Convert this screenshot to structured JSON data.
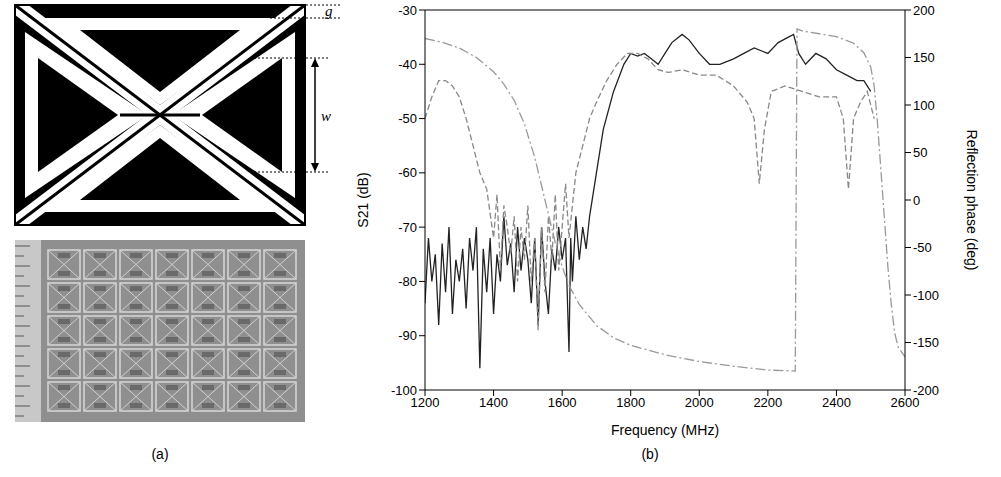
{
  "diagram": {
    "label": "(a)",
    "dimensions": [
      "g",
      "w"
    ]
  },
  "chart_data": {
    "type": "line",
    "label": "(b)",
    "x_label": "Frequency (MHz)",
    "y_label": "S21 (dB)",
    "y2_label": "Reflection phase (deg)",
    "xlim": [
      1200,
      2600
    ],
    "xticks": [
      1200,
      1400,
      1600,
      1800,
      2000,
      2200,
      2400,
      2600
    ],
    "ylim": [
      -100,
      -30
    ],
    "yticks": [
      -100,
      -90,
      -80,
      -70,
      -60,
      -50,
      -40,
      -30
    ],
    "y2lim": [
      -200,
      200
    ],
    "y2ticks": [
      -200,
      -150,
      -100,
      -50,
      0,
      50,
      100,
      150,
      200
    ],
    "grid": false,
    "series": [
      {
        "color": "#222222",
        "line_style": "solid",
        "x": [
          1200,
          1210,
          1220,
          1230,
          1240,
          1250,
          1260,
          1270,
          1280,
          1290,
          1300,
          1310,
          1320,
          1330,
          1340,
          1350,
          1360,
          1370,
          1380,
          1390,
          1400,
          1410,
          1420,
          1430,
          1440,
          1450,
          1460,
          1470,
          1480,
          1490,
          1500,
          1510,
          1520,
          1530,
          1540,
          1550,
          1560,
          1570,
          1580,
          1590,
          1600,
          1610,
          1620,
          1625,
          1630,
          1640,
          1650,
          1660,
          1670,
          1680,
          1700,
          1720,
          1750,
          1780,
          1800,
          1820,
          1840,
          1860,
          1880,
          1900,
          1920,
          1950,
          1970,
          2000,
          2030,
          2060,
          2100,
          2130,
          2160,
          2200,
          2230,
          2260,
          2275,
          2290,
          2310,
          2340,
          2370,
          2400,
          2430,
          2460,
          2480,
          2500
        ],
        "values": [
          -84,
          -72,
          -80,
          -75,
          -88,
          -73,
          -82,
          -70,
          -86,
          -76,
          -80,
          -74,
          -85,
          -72,
          -78,
          -70,
          -96,
          -74,
          -82,
          -72,
          -86,
          -75,
          -80,
          -68,
          -77,
          -73,
          -82,
          -70,
          -78,
          -72,
          -76,
          -84,
          -72,
          -88,
          -70,
          -80,
          -86,
          -74,
          -78,
          -70,
          -76,
          -72,
          -93,
          -72,
          -80,
          -68,
          -76,
          -70,
          -74,
          -68,
          -60,
          -52,
          -45,
          -40,
          -38,
          -38.5,
          -38,
          -39,
          -40,
          -38,
          -36,
          -34.5,
          -35.5,
          -38,
          -40,
          -40,
          -39,
          -38,
          -37,
          -38,
          -36,
          -35,
          -34.5,
          -38,
          -40,
          -38,
          -39,
          -41,
          -42,
          -43,
          -43,
          -45
        ]
      },
      {
        "color": "#888888",
        "line_style": "dashed",
        "x": [
          1200,
          1220,
          1240,
          1260,
          1280,
          1300,
          1320,
          1340,
          1360,
          1380,
          1400,
          1410,
          1420,
          1430,
          1440,
          1450,
          1460,
          1470,
          1480,
          1490,
          1500,
          1510,
          1520,
          1530,
          1540,
          1550,
          1560,
          1570,
          1580,
          1590,
          1600,
          1610,
          1620,
          1640,
          1660,
          1680,
          1700,
          1730,
          1760,
          1790,
          1820,
          1850,
          1880,
          1910,
          1950,
          2000,
          2050,
          2100,
          2140,
          2160,
          2175,
          2190,
          2210,
          2250,
          2300,
          2350,
          2400,
          2420,
          2435,
          2450,
          2470,
          2490,
          2510
        ],
        "values": [
          -50,
          -46,
          -43,
          -43,
          -44,
          -46,
          -50,
          -55,
          -60,
          -63,
          -72,
          -64,
          -78,
          -66,
          -70,
          -75,
          -68,
          -80,
          -70,
          -76,
          -66,
          -80,
          -72,
          -89,
          -70,
          -82,
          -68,
          -76,
          -64,
          -78,
          -70,
          -62,
          -72,
          -60,
          -55,
          -50,
          -47,
          -43,
          -40,
          -38,
          -38,
          -39,
          -41,
          -41.5,
          -41,
          -42,
          -42,
          -44,
          -47,
          -50,
          -62,
          -52,
          -45,
          -44,
          -45,
          -46,
          -46,
          -50,
          -63,
          -50,
          -47,
          -45,
          -50
        ]
      },
      {
        "color": "#999999",
        "line_style": "dashdot",
        "axis": "y2",
        "x": [
          1200,
          1250,
          1300,
          1350,
          1400,
          1430,
          1460,
          1490,
          1520,
          1540,
          1560,
          1580,
          1600,
          1620,
          1650,
          1700,
          1750,
          1800,
          1900,
          2000,
          2100,
          2200,
          2280,
          2285,
          2300,
          2350,
          2400,
          2450,
          2480,
          2500,
          2510,
          2520,
          2530,
          2540,
          2550,
          2560,
          2570,
          2580,
          2600
        ],
        "values": [
          170,
          166,
          160,
          150,
          135,
          122,
          105,
          80,
          45,
          15,
          -15,
          -45,
          -70,
          -90,
          -110,
          -132,
          -145,
          -153,
          -163,
          -170,
          -175,
          -179,
          -180,
          180,
          178,
          175,
          172,
          165,
          155,
          140,
          120,
          80,
          30,
          -20,
          -70,
          -110,
          -140,
          -155,
          -165
        ]
      }
    ]
  }
}
